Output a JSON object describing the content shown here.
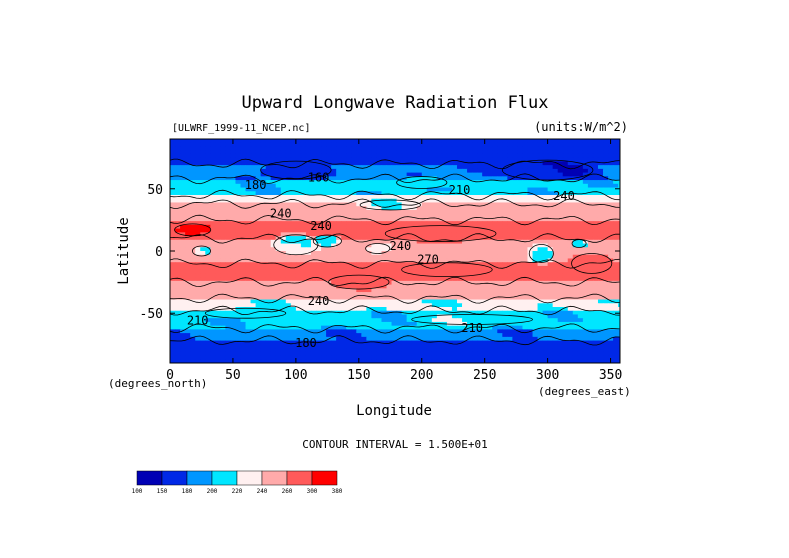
{
  "chart_data": {
    "type": "heatmap",
    "title": "Upward Longwave Radiation Flux",
    "file_label": "[ULWRF_1999-11_NCEP.nc]",
    "units_label": "(units:W/m^2)",
    "xlabel": "Longitude",
    "ylabel": "Latitude",
    "x_units": "(degrees_east)",
    "y_units": "(degrees_north)",
    "xlim": [
      0,
      357.5
    ],
    "ylim": [
      -90,
      90
    ],
    "x_ticks": [
      0,
      50,
      100,
      150,
      200,
      250,
      300,
      350
    ],
    "y_ticks": [
      50,
      0,
      -50
    ],
    "contour_interval": "CONTOUR INTERVAL = 1.500E+01",
    "contour_labels": [
      {
        "text": "180",
        "lon": 68,
        "lat": 53
      },
      {
        "text": "160",
        "lon": 118,
        "lat": 59
      },
      {
        "text": "240",
        "lon": 88,
        "lat": 30
      },
      {
        "text": "240",
        "lon": 120,
        "lat": 20
      },
      {
        "text": "240",
        "lon": 183,
        "lat": 4
      },
      {
        "text": "270",
        "lon": 205,
        "lat": -7
      },
      {
        "text": "240",
        "lon": 118,
        "lat": -40
      },
      {
        "text": "210",
        "lon": 22,
        "lat": -56
      },
      {
        "text": "210",
        "lon": 240,
        "lat": -62
      },
      {
        "text": "180",
        "lon": 108,
        "lat": -74
      },
      {
        "text": "240",
        "lon": 313,
        "lat": 44
      },
      {
        "text": "210",
        "lon": 230,
        "lat": 49
      }
    ],
    "colorbar": {
      "levels": [
        "100",
        "150",
        "180",
        "200",
        "220",
        "240",
        "260",
        "300",
        "380"
      ],
      "colors": [
        "#0000b4",
        "#0028e6",
        "#0096ff",
        "#00e6ff",
        "#fff0f0",
        "#ffaaaa",
        "#ff5a5a",
        "#ff0000"
      ]
    },
    "field": {
      "description_free": true,
      "lat_bands": [
        {
          "lat_min": 70,
          "lat_max": 90,
          "value": 160
        },
        {
          "lat_min": 58,
          "lat_max": 70,
          "value": 185
        },
        {
          "lat_min": 45,
          "lat_max": 58,
          "value": 205
        },
        {
          "lat_min": 38,
          "lat_max": 45,
          "value": 230
        },
        {
          "lat_min": 25,
          "lat_max": 38,
          "value": 250
        },
        {
          "lat_min": 10,
          "lat_max": 25,
          "value": 275
        },
        {
          "lat_min": -10,
          "lat_max": 10,
          "value": 250
        },
        {
          "lat_min": -25,
          "lat_max": -10,
          "value": 270
        },
        {
          "lat_min": -38,
          "lat_max": -25,
          "value": 250
        },
        {
          "lat_min": -48,
          "lat_max": -38,
          "value": 225
        },
        {
          "lat_min": -62,
          "lat_max": -48,
          "value": 205
        },
        {
          "lat_min": -72,
          "lat_max": -62,
          "value": 185
        },
        {
          "lat_min": -90,
          "lat_max": -72,
          "value": 160
        }
      ],
      "features": [
        {
          "lon": 18,
          "lat": 17,
          "rx": 18,
          "ry": 6,
          "value": 310
        },
        {
          "lon": 215,
          "lat": 14,
          "rx": 55,
          "ry": 8,
          "value": 285
        },
        {
          "lon": 100,
          "lat": 5,
          "rx": 22,
          "ry": 10,
          "value": 225
        },
        {
          "lon": 125,
          "lat": 8,
          "rx": 14,
          "ry": 6,
          "value": 210
        },
        {
          "lon": 165,
          "lat": 2,
          "rx": 12,
          "ry": 5,
          "value": 230
        },
        {
          "lon": 295,
          "lat": -2,
          "rx": 12,
          "ry": 9,
          "value": 215
        },
        {
          "lon": 325,
          "lat": 6,
          "rx": 7,
          "ry": 4,
          "value": 210
        },
        {
          "lon": 25,
          "lat": 0,
          "rx": 9,
          "ry": 5,
          "value": 215
        },
        {
          "lon": 220,
          "lat": -15,
          "rx": 45,
          "ry": 7,
          "value": 280
        },
        {
          "lon": 150,
          "lat": -25,
          "rx": 30,
          "ry": 7,
          "value": 275
        },
        {
          "lon": 335,
          "lat": -10,
          "rx": 20,
          "ry": 10,
          "value": 285
        },
        {
          "lon": 300,
          "lat": 65,
          "rx": 45,
          "ry": 10,
          "value": 150
        },
        {
          "lon": 100,
          "lat": 65,
          "rx": 35,
          "ry": 9,
          "value": 165
        },
        {
          "lon": 200,
          "lat": 55,
          "rx": 25,
          "ry": 6,
          "value": 215
        },
        {
          "lon": 175,
          "lat": 37,
          "rx": 30,
          "ry": 5,
          "value": 225
        },
        {
          "lon": 240,
          "lat": -55,
          "rx": 60,
          "ry": 5,
          "value": 215
        },
        {
          "lon": 60,
          "lat": -50,
          "rx": 40,
          "ry": 5,
          "value": 215
        }
      ]
    }
  }
}
